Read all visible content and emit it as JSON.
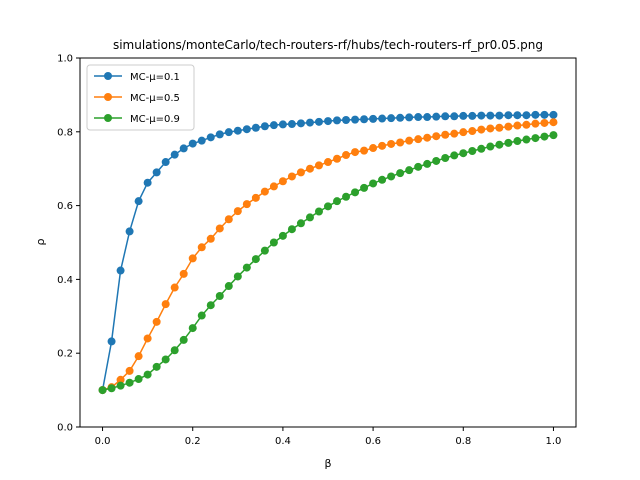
{
  "chart_data": {
    "type": "line",
    "title": "simulations/monteCarlo/tech-routers-rf/hubs/tech-routers-rf_pr0.05.png",
    "xlabel": "β",
    "ylabel": "ρ",
    "xlim": [
      -0.05,
      1.05
    ],
    "ylim": [
      0.0,
      1.0
    ],
    "xticks": [
      0.0,
      0.2,
      0.4,
      0.6,
      0.8,
      1.0
    ],
    "yticks": [
      0.0,
      0.2,
      0.4,
      0.6,
      0.8,
      1.0
    ],
    "xtick_labels": [
      "0.0",
      "0.2",
      "0.4",
      "0.6",
      "0.8",
      "1.0"
    ],
    "ytick_labels": [
      "0.0",
      "0.2",
      "0.4",
      "0.6",
      "0.8",
      "1.0"
    ],
    "grid": false,
    "legend_position": "upper-left",
    "x": [
      0.0,
      0.02,
      0.04,
      0.06,
      0.08,
      0.1,
      0.12,
      0.14,
      0.16,
      0.18,
      0.2,
      0.22,
      0.24,
      0.26,
      0.28,
      0.3,
      0.32,
      0.34,
      0.36,
      0.38,
      0.4,
      0.42,
      0.44,
      0.46,
      0.48,
      0.5,
      0.52,
      0.54,
      0.56,
      0.58,
      0.6,
      0.62,
      0.64,
      0.66,
      0.68,
      0.7,
      0.72,
      0.74,
      0.76,
      0.78,
      0.8,
      0.82,
      0.84,
      0.86,
      0.88,
      0.9,
      0.92,
      0.94,
      0.96,
      0.98,
      1.0
    ],
    "series": [
      {
        "name": "MC-μ=0.1",
        "color": "#1f77b4",
        "values": [
          0.1,
          0.232,
          0.424,
          0.53,
          0.612,
          0.662,
          0.69,
          0.718,
          0.738,
          0.755,
          0.768,
          0.776,
          0.785,
          0.793,
          0.799,
          0.803,
          0.807,
          0.811,
          0.815,
          0.818,
          0.82,
          0.821,
          0.823,
          0.825,
          0.827,
          0.829,
          0.831,
          0.832,
          0.833,
          0.834,
          0.835,
          0.836,
          0.837,
          0.838,
          0.839,
          0.84,
          0.84,
          0.841,
          0.842,
          0.842,
          0.843,
          0.843,
          0.844,
          0.844,
          0.844,
          0.845,
          0.845,
          0.845,
          0.846,
          0.846,
          0.846
        ]
      },
      {
        "name": "MC-μ=0.5",
        "color": "#ff7f0e",
        "values": [
          0.1,
          0.108,
          0.128,
          0.152,
          0.192,
          0.24,
          0.285,
          0.333,
          0.378,
          0.415,
          0.457,
          0.487,
          0.51,
          0.538,
          0.563,
          0.585,
          0.604,
          0.621,
          0.638,
          0.652,
          0.666,
          0.679,
          0.69,
          0.7,
          0.709,
          0.718,
          0.727,
          0.737,
          0.745,
          0.749,
          0.756,
          0.762,
          0.767,
          0.771,
          0.776,
          0.78,
          0.784,
          0.788,
          0.792,
          0.795,
          0.799,
          0.802,
          0.806,
          0.809,
          0.811,
          0.814,
          0.817,
          0.819,
          0.822,
          0.824,
          0.826
        ]
      },
      {
        "name": "MC-μ=0.9",
        "color": "#2ca02c",
        "values": [
          0.1,
          0.105,
          0.112,
          0.12,
          0.13,
          0.142,
          0.163,
          0.183,
          0.208,
          0.236,
          0.268,
          0.302,
          0.33,
          0.355,
          0.382,
          0.408,
          0.432,
          0.455,
          0.478,
          0.5,
          0.518,
          0.536,
          0.552,
          0.568,
          0.584,
          0.598,
          0.612,
          0.624,
          0.636,
          0.648,
          0.66,
          0.67,
          0.679,
          0.688,
          0.696,
          0.705,
          0.713,
          0.721,
          0.729,
          0.736,
          0.742,
          0.748,
          0.754,
          0.76,
          0.765,
          0.77,
          0.775,
          0.779,
          0.783,
          0.787,
          0.791
        ]
      }
    ]
  }
}
